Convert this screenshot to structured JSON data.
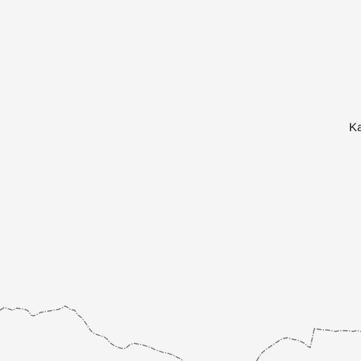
{
  "map": {
    "background_color": "#f5f5f5",
    "border_color": "#6a6a6a",
    "labels": [
      {
        "text": "Ka"
      }
    ]
  }
}
